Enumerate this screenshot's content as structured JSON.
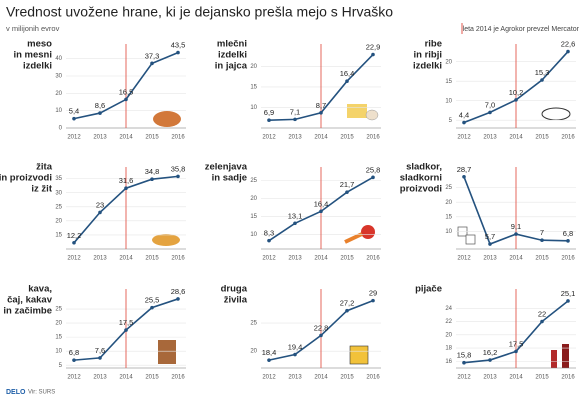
{
  "header": {
    "title": "Vrednost uvožene hrane, ki je dejansko prešla mejo s Hrvaško",
    "subtitle": "v milijonih evrov",
    "annotation": "leta 2014 je Agrokor prevzel Mercator"
  },
  "footer": {
    "brand": "DELO",
    "source": "Vir: SURS"
  },
  "chart_data": [
    {
      "type": "line",
      "title": [
        "meso",
        "in mesni",
        "izdelki"
      ],
      "categories": [
        "2012",
        "2013",
        "2014",
        "2015",
        "2016"
      ],
      "values": [
        5.4,
        8.6,
        16.5,
        37.3,
        43.5
      ],
      "value_labels": [
        "5,4",
        "8,6",
        "16,5",
        "37,3",
        "43,5"
      ],
      "color": "#24527f",
      "ylim": [
        0,
        45
      ],
      "yticks": [
        0,
        10,
        20,
        30,
        40
      ],
      "highlight": "2014",
      "highlight_color": "#e2574c",
      "grid": true
    },
    {
      "type": "line",
      "title": [
        "mlečni",
        "izdelki",
        "in jajca"
      ],
      "categories": [
        "2012",
        "2013",
        "2014",
        "2015",
        "2016"
      ],
      "values": [
        6.9,
        7.1,
        8.7,
        16.4,
        22.9
      ],
      "value_labels": [
        "6,9",
        "7,1",
        "8,7",
        "16,4",
        "22,9"
      ],
      "color": "#24527f",
      "ylim": [
        5,
        24
      ],
      "yticks": [
        10,
        15,
        20
      ],
      "highlight": "2014",
      "highlight_color": "#e2574c",
      "grid": true
    },
    {
      "type": "line",
      "title": [
        "ribe",
        "in ribji",
        "izdelki"
      ],
      "categories": [
        "2012",
        "2013",
        "2014",
        "2015",
        "2016"
      ],
      "values": [
        4.4,
        7.0,
        10.2,
        15.3,
        22.6
      ],
      "value_labels": [
        "4,4",
        "7,0",
        "10,2",
        "15,3",
        "22,6"
      ],
      "color": "#24527f",
      "ylim": [
        3,
        23
      ],
      "yticks": [
        5,
        10,
        15,
        20
      ],
      "highlight": "2014",
      "highlight_color": "#e2574c",
      "grid": true
    },
    {
      "type": "line",
      "title": [
        "žita",
        "in proizvodi",
        "iz žit"
      ],
      "categories": [
        "2012",
        "2013",
        "2014",
        "2015",
        "2016"
      ],
      "values": [
        12.2,
        23,
        31.6,
        34.8,
        35.8
      ],
      "value_labels": [
        "12,2",
        "23",
        "31,6",
        "34,8",
        "35,8"
      ],
      "color": "#24527f",
      "ylim": [
        10,
        37
      ],
      "yticks": [
        15,
        20,
        25,
        30,
        35
      ],
      "highlight": "2014",
      "highlight_color": "#e2574c",
      "grid": true
    },
    {
      "type": "line",
      "title": [
        "zelenjava",
        "in sadje"
      ],
      "categories": [
        "2012",
        "2013",
        "2014",
        "2015",
        "2016"
      ],
      "values": [
        8.3,
        13.1,
        16.4,
        21.7,
        25.8
      ],
      "value_labels": [
        "8,3",
        "13,1",
        "16,4",
        "21,7",
        "25,8"
      ],
      "color": "#24527f",
      "ylim": [
        6,
        27
      ],
      "yticks": [
        10,
        15,
        20,
        25
      ],
      "highlight": "2014",
      "highlight_color": "#e2574c",
      "grid": true
    },
    {
      "type": "line",
      "title": [
        "sladkor,",
        "sladkorni",
        "proizvodi"
      ],
      "categories": [
        "2012",
        "2013",
        "2014",
        "2015",
        "2016"
      ],
      "values": [
        28.7,
        5.7,
        9.1,
        7,
        6.8
      ],
      "value_labels": [
        "28,7",
        "5,7",
        "9,1",
        "7",
        "6,8"
      ],
      "color": "#24527f",
      "ylim": [
        4,
        30
      ],
      "yticks": [
        10,
        15,
        20,
        25
      ],
      "highlight": "2014",
      "highlight_color": "#e2574c",
      "grid": true
    },
    {
      "type": "line",
      "title": [
        "kava,",
        "čaj, kakav",
        "in začimbe"
      ],
      "categories": [
        "2012",
        "2013",
        "2014",
        "2015",
        "2016"
      ],
      "values": [
        6.8,
        7.6,
        17.5,
        25.5,
        28.6
      ],
      "value_labels": [
        "6,8",
        "7,6",
        "17,5",
        "25,5",
        "28,6"
      ],
      "color": "#24527f",
      "ylim": [
        4,
        30
      ],
      "yticks": [
        5,
        10,
        15,
        20,
        25
      ],
      "highlight": "2014",
      "highlight_color": "#e2574c",
      "grid": true
    },
    {
      "type": "line",
      "title": [
        "druga",
        "živila"
      ],
      "categories": [
        "2012",
        "2013",
        "2014",
        "2015",
        "2016"
      ],
      "values": [
        18.4,
        19.4,
        22.8,
        27.2,
        29
      ],
      "value_labels": [
        "18,4",
        "19,4",
        "22,8",
        "27,2",
        "29"
      ],
      "color": "#24527f",
      "ylim": [
        17,
        30
      ],
      "yticks": [
        20,
        25
      ],
      "highlight": "2014",
      "highlight_color": "#e2574c",
      "grid": true
    },
    {
      "type": "line",
      "title": [
        "pijače"
      ],
      "categories": [
        "2012",
        "2013",
        "2014",
        "2015",
        "2016"
      ],
      "values": [
        15.8,
        16.2,
        17.5,
        22,
        25.1
      ],
      "value_labels": [
        "15,8",
        "16,2",
        "17,5",
        "22",
        "25,1"
      ],
      "color": "#24527f",
      "ylim": [
        15,
        26
      ],
      "yticks": [
        16,
        18,
        20,
        22,
        24
      ],
      "highlight": "2014",
      "highlight_color": "#e2574c",
      "grid": true
    }
  ]
}
